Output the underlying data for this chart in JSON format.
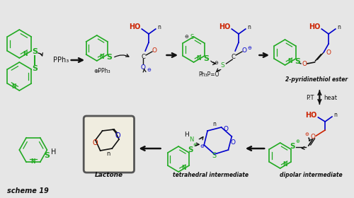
{
  "bg_color": "#e6e6e6",
  "scheme_label": "scheme 19",
  "green": "#22aa22",
  "red": "#cc2200",
  "blue": "#0000cc",
  "black": "#111111",
  "label_2pyr": "2-pyridinethiol ester",
  "label_tet": "tetrahedral intermediate",
  "label_dip": "dipolar intermediate",
  "label_lactone": "Lactone",
  "label_pt": "P.T",
  "label_heat": "heat"
}
